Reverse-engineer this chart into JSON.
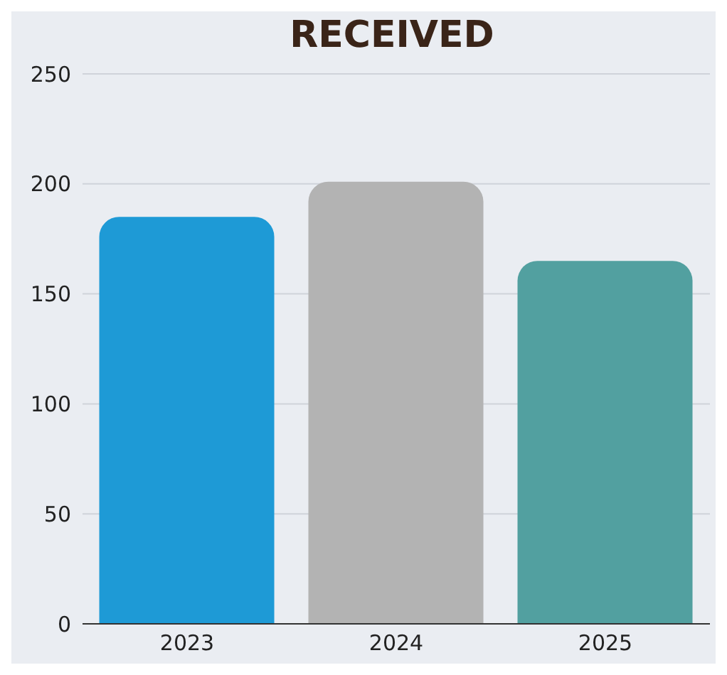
{
  "chart_data": {
    "type": "bar",
    "title": "RECEIVED",
    "categories": [
      "2023",
      "2024",
      "2025"
    ],
    "values": [
      185,
      201,
      165
    ],
    "colors": [
      "#1e9ad6",
      "#b3b3b3",
      "#52a0a0"
    ],
    "ylim": [
      0,
      250
    ],
    "yticks": [
      0,
      50,
      100,
      150,
      200,
      250
    ],
    "grid": "y"
  }
}
